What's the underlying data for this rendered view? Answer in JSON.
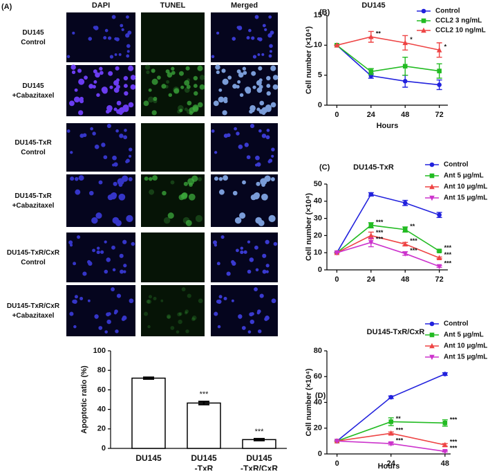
{
  "panel_a": {
    "label": "(A)",
    "columns": [
      "DAPI",
      "TUNEL",
      "Merged"
    ],
    "rows": [
      [
        "DU145",
        "Control"
      ],
      [
        "DU145",
        "+Cabazitaxel"
      ],
      [
        "DU145-TxR",
        "Control"
      ],
      [
        "DU145-TxR",
        "+Cabazitaxel"
      ],
      [
        "DU145-TxR/CxR",
        "Control"
      ],
      [
        "DU145-TxR/CxR",
        "+Cabazitaxel"
      ]
    ]
  },
  "chart_data": [
    {
      "type": "bar",
      "ylabel": "Apoptotic ratio (%)",
      "categories": [
        [
          "DU145"
        ],
        [
          "DU145",
          "-TxR"
        ],
        [
          "DU145",
          "-TxR/CxR"
        ]
      ],
      "values": [
        72,
        46.5,
        9
      ],
      "errors": [
        0.8,
        1.5,
        0.8
      ],
      "sig": [
        null,
        "***",
        "***"
      ],
      "color": "#ffffff",
      "ylim": [
        0,
        100
      ],
      "yticks": [
        0,
        20,
        40,
        60,
        80,
        100
      ]
    },
    {
      "type": "line",
      "panel": "(B)",
      "title": "DU145",
      "xlabel": "Hours",
      "ylabel": "Cell number (×10⁴)",
      "x": [
        0,
        24,
        48,
        72
      ],
      "xlim": [
        -7,
        78
      ],
      "xticks": [
        0,
        24,
        48,
        72
      ],
      "ylim": [
        0,
        15
      ],
      "yticks": [
        0,
        5,
        10,
        15
      ],
      "series": [
        {
          "name": "Control",
          "color": "#2222dd",
          "marker": "circle",
          "values": [
            10,
            4.9,
            4.0,
            3.4
          ],
          "errors": [
            0,
            0.4,
            1.0,
            0.8
          ]
        },
        {
          "name": "CCL2 3 ng/mL",
          "color": "#22bb22",
          "marker": "square",
          "values": [
            10,
            5.6,
            6.5,
            5.7
          ],
          "errors": [
            0,
            0.5,
            1.5,
            1.2
          ]
        },
        {
          "name": "CCL2 10 ng/mL",
          "color": "#ee4444",
          "marker": "triangle",
          "values": [
            10,
            11.4,
            10.4,
            9.2
          ],
          "errors": [
            0,
            0.9,
            1.2,
            1.2
          ],
          "sig": [
            null,
            "**",
            "*",
            "*"
          ]
        }
      ]
    },
    {
      "type": "line",
      "panel": "(C)",
      "title": "DU145-TxR",
      "ylabel": "Cell number (×10⁴)",
      "x": [
        0,
        24,
        48,
        72
      ],
      "xlim": [
        -7,
        78
      ],
      "xticks": [
        0,
        24,
        48,
        72
      ],
      "ylim": [
        0,
        50
      ],
      "yticks": [
        0,
        10,
        20,
        30,
        40,
        50
      ],
      "series": [
        {
          "name": "Control",
          "color": "#2222dd",
          "marker": "circle",
          "values": [
            10,
            44,
            39,
            32
          ],
          "errors": [
            0,
            1,
            1.5,
            1.5
          ]
        },
        {
          "name": "Ant 5 μg/mL",
          "color": "#22bb22",
          "marker": "square",
          "values": [
            10,
            26,
            23.5,
            11
          ],
          "errors": [
            0,
            1.5,
            1.5,
            0.5
          ],
          "sig": [
            null,
            "***",
            "**",
            "***"
          ]
        },
        {
          "name": "Ant 10 μg/mL",
          "color": "#ee4444",
          "marker": "triangle",
          "values": [
            10,
            20,
            15,
            7
          ],
          "errors": [
            0,
            2,
            1,
            0.5
          ],
          "sig": [
            null,
            "***",
            "***",
            "***"
          ]
        },
        {
          "name": "Ant 15 μg/mL",
          "color": "#cc33cc",
          "marker": "triangle-down",
          "values": [
            10,
            16,
            9.5,
            2
          ],
          "errors": [
            0,
            2.5,
            1,
            0.5
          ],
          "sig": [
            null,
            "***",
            "***",
            "***"
          ]
        }
      ]
    },
    {
      "type": "line",
      "panel": "(D)",
      "title": "DU145-TxR/CxR",
      "xlabel": "Hours",
      "ylabel": "Cell number (×10⁴)",
      "x": [
        0,
        24,
        48
      ],
      "xlim": [
        -4.5,
        50.5
      ],
      "xticks": [
        0,
        24,
        48
      ],
      "ylim": [
        0,
        80
      ],
      "yticks": [
        0,
        20,
        40,
        60,
        80
      ],
      "series": [
        {
          "name": "Control",
          "color": "#2222dd",
          "marker": "circle",
          "values": [
            10,
            44,
            62
          ],
          "errors": [
            0,
            1,
            1
          ]
        },
        {
          "name": "Ant 5 μg/mL",
          "color": "#22bb22",
          "marker": "square",
          "values": [
            10,
            25,
            24
          ],
          "errors": [
            0,
            3,
            2.5
          ],
          "sig": [
            null,
            "**",
            "***"
          ]
        },
        {
          "name": "Ant 10 μg/mL",
          "color": "#ee4444",
          "marker": "triangle",
          "values": [
            10,
            16,
            7
          ],
          "errors": [
            0,
            1,
            1
          ],
          "sig": [
            null,
            "***",
            "***"
          ]
        },
        {
          "name": "Ant 15 μg/mL",
          "color": "#cc33cc",
          "marker": "triangle-down",
          "values": [
            10,
            8,
            2
          ],
          "errors": [
            0,
            1,
            0.5
          ],
          "sig": [
            null,
            "***",
            "***"
          ]
        }
      ]
    }
  ]
}
